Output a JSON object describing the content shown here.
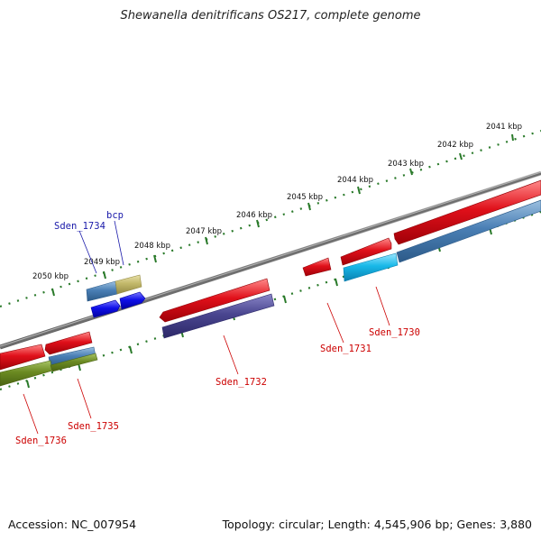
{
  "title": "Shewanella denitrificans OS217, complete genome",
  "footer": {
    "accession": "Accession: NC_007954",
    "summary": "Topology: circular; Length: 4,545,906 bp; Genes: 3,880"
  },
  "colors": {
    "backbone": "#808080",
    "tick": "#2a7a2a",
    "gene_red": "#e0101a",
    "gene_steel": "#4a7fb5",
    "gene_cyan": "#18b8e8",
    "gene_slate": "#4a4690",
    "gene_olive": "#6b8a22",
    "gene_khaki": "#c2b86a",
    "gene_blue": "#1010e8",
    "label_red": "#cc0000",
    "label_blue": "#1a1aaa"
  },
  "scale_labels": [
    "2041 kbp",
    "2042 kbp",
    "2043 kbp",
    "2044 kbp",
    "2045 kbp",
    "2046 kbp",
    "2047 kbp",
    "2048 kbp",
    "2049 kbp",
    "2050 kbp"
  ],
  "gene_labels": {
    "sden_1734": "Sden_1734",
    "bcp": "bcp",
    "sden_1730": "Sden_1730",
    "sden_1731": "Sden_1731",
    "sden_1732": "Sden_1732",
    "sden_1735": "Sden_1735",
    "sden_1736": "Sden_1736"
  }
}
